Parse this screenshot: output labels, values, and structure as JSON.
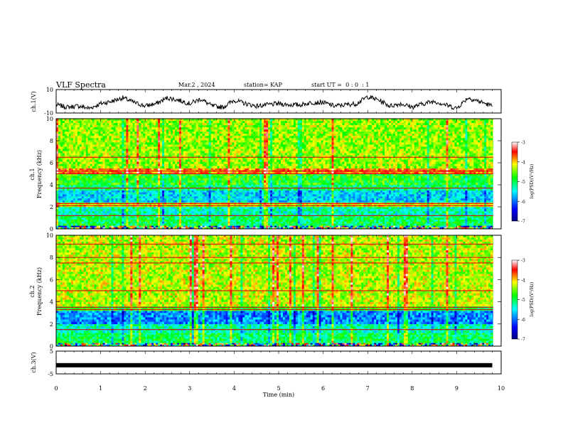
{
  "header": {
    "title": "VLF Spectra",
    "date": "Mar.2 , 2024",
    "station": "station= KAP",
    "start_ut": "start UT =  0 : 0  : 1"
  },
  "axes": {
    "time_label": "Time (min)",
    "freq_label": "Frequency (kHz)",
    "ch1_trace_label": "ch.1(V)",
    "ch3_trace_label": "ch.3(V)",
    "ch1_spec_label": "ch.1",
    "ch2_spec_label": "ch.2",
    "colorbar_label": "log(PSD)(V²/Hz)"
  },
  "chart_data": [
    {
      "type": "line",
      "panel": "ch1-waveform",
      "ylabel": "ch.1(V)",
      "xlim": [
        0,
        10
      ],
      "ylim": [
        -10,
        10
      ],
      "yticks": [
        "10",
        "-10"
      ],
      "x_end": 9.8,
      "series": [
        {
          "x": [
            0,
            0.25,
            0.5,
            0.75,
            1.0,
            1.25,
            1.5,
            1.75,
            2.0,
            2.25,
            2.5,
            2.75,
            3.0,
            3.25,
            3.5,
            3.75,
            4.0,
            4.25,
            4.5,
            4.75,
            5.0,
            5.25,
            5.5,
            5.75,
            6.0,
            6.25,
            6.5,
            6.75,
            7.0,
            7.25,
            7.5,
            7.75,
            8.0,
            8.25,
            8.5,
            8.75,
            9.0,
            9.25,
            9.5,
            9.8
          ],
          "values": [
            -3,
            -5,
            -4,
            -6,
            -2,
            0,
            3,
            -1,
            -4,
            -2,
            3,
            1,
            -2,
            2,
            -4,
            -5,
            1,
            -2,
            -4,
            -3,
            -2,
            -3,
            -3,
            -1,
            -1,
            -4,
            -3,
            -2,
            4,
            1,
            -4,
            -2,
            -5,
            -2,
            0,
            -3,
            -6,
            3,
            0,
            -4
          ]
        }
      ]
    },
    {
      "type": "heatmap",
      "panel": "ch1-spectrogram",
      "ylabel": "Frequency (kHz)",
      "xlim": [
        0,
        10
      ],
      "ylim": [
        0,
        10
      ],
      "yticks": [
        "0",
        "2",
        "4",
        "6",
        "8",
        "10"
      ],
      "colorbar": {
        "range": [
          -7,
          -3
        ],
        "ticks": [
          "-3",
          "-4",
          "-5",
          "-6",
          "-7"
        ],
        "colors": [
          "#000080",
          "#0000ff",
          "#00ffff",
          "#00ff00",
          "#ffff00",
          "#ff0000",
          "#ffffff"
        ]
      },
      "bands": [
        {
          "freq_khz": [
            0.0,
            0.3
          ],
          "level": "mixed"
        },
        {
          "freq_khz": [
            0.3,
            1.2
          ],
          "level": -5.0
        },
        {
          "freq_khz": [
            1.2,
            2.0
          ],
          "level": -5.3
        },
        {
          "freq_khz": [
            2.0,
            2.4
          ],
          "level": -4.2
        },
        {
          "freq_khz": [
            2.4,
            3.5
          ],
          "level": -5.6
        },
        {
          "freq_khz": [
            3.5,
            4.0
          ],
          "level": -5.1
        },
        {
          "freq_khz": [
            4.0,
            5.0
          ],
          "level": -4.8
        },
        {
          "freq_khz": [
            5.0,
            5.5
          ],
          "level": -3.7
        },
        {
          "freq_khz": [
            5.5,
            10.0
          ],
          "level": -4.4
        }
      ],
      "lines_khz": [
        1.2,
        2.1,
        2.3,
        3.7,
        5.0,
        5.25,
        6.5
      ]
    },
    {
      "type": "heatmap",
      "panel": "ch2-spectrogram",
      "ylabel": "Frequency (kHz)",
      "xlim": [
        0,
        10
      ],
      "ylim": [
        0,
        10
      ],
      "yticks": [
        "0",
        "2",
        "4",
        "6",
        "8",
        "10"
      ],
      "colorbar": {
        "range": [
          -7,
          -3
        ],
        "ticks": [
          "-3",
          "-4",
          "-5",
          "-6",
          "-7"
        ],
        "colors": [
          "#000080",
          "#0000ff",
          "#00ffff",
          "#00ff00",
          "#ffff00",
          "#ff0000",
          "#ffffff"
        ]
      },
      "bands": [
        {
          "freq_khz": [
            0.0,
            0.3
          ],
          "level": "mixed"
        },
        {
          "freq_khz": [
            0.3,
            1.2
          ],
          "level": -5.0
        },
        {
          "freq_khz": [
            1.2,
            2.0
          ],
          "level": -5.3
        },
        {
          "freq_khz": [
            2.0,
            3.2
          ],
          "level": -5.9
        },
        {
          "freq_khz": [
            3.2,
            3.6
          ],
          "level": -4.8
        },
        {
          "freq_khz": [
            3.6,
            10.0
          ],
          "level": -4.3
        }
      ],
      "lines_khz": [
        1.5,
        3.3,
        3.5,
        5.0,
        7.5,
        8.0,
        9.2
      ]
    },
    {
      "type": "line",
      "panel": "ch3-waveform",
      "ylabel": "ch.3(V)",
      "xlim": [
        0,
        10
      ],
      "ylim": [
        -5,
        5
      ],
      "yticks": [
        "5",
        "-5"
      ],
      "xticks": [
        "0",
        "1",
        "2",
        "3",
        "4",
        "5",
        "6",
        "7",
        "8",
        "9",
        "10"
      ],
      "xlabel": "Time (min)",
      "series": [
        {
          "x": [
            0,
            9.8
          ],
          "values": [
            -1.2,
            -1.2
          ]
        }
      ]
    }
  ]
}
